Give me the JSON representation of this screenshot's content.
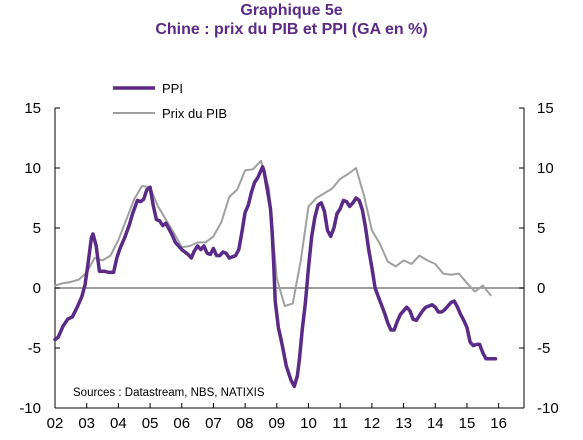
{
  "header": {
    "title": "Graphique 5e",
    "subtitle": "Chine : prix du PIB et PPI (GA en %)"
  },
  "source": "Sources : Datastream, NBS, NATIXIS",
  "colors": {
    "ppi": "#5b2a86",
    "pib": "#a0a0a0",
    "zero": "#7f7f7f",
    "axis": "#000000"
  },
  "chart_data": {
    "type": "line",
    "title": "Chine : prix du PIB et PPI (GA en %)",
    "xlim": [
      2002.0,
      2016.8
    ],
    "ylim": [
      -10,
      15
    ],
    "y_right_lim": [
      -10,
      15
    ],
    "x_ticks": [
      {
        "label": "02",
        "x": 2002.0
      },
      {
        "label": "03",
        "x": 2003.0
      },
      {
        "label": "04",
        "x": 2004.0
      },
      {
        "label": "05",
        "x": 2005.0
      },
      {
        "label": "06",
        "x": 2006.0
      },
      {
        "label": "07",
        "x": 2007.0
      },
      {
        "label": "08",
        "x": 2008.0
      },
      {
        "label": "09",
        "x": 2009.0
      },
      {
        "label": "10",
        "x": 2010.0
      },
      {
        "label": "11",
        "x": 2011.0
      },
      {
        "label": "12",
        "x": 2012.0
      },
      {
        "label": "13",
        "x": 2013.0
      },
      {
        "label": "14",
        "x": 2014.0
      },
      {
        "label": "15",
        "x": 2015.0
      },
      {
        "label": "16",
        "x": 2016.0
      }
    ],
    "y_ticks_left": [
      "15",
      "10",
      "5",
      "0",
      "-5",
      "-10"
    ],
    "y_ticks_right": [
      "15",
      "10",
      "5",
      "0",
      "-5",
      "-10"
    ],
    "y_tick_values": [
      15,
      10,
      5,
      0,
      -5,
      -10
    ],
    "grid": false,
    "legend_position": "top-left",
    "series": [
      {
        "name": "PPI",
        "color": "#5b2a86",
        "width": 3.5,
        "points": [
          [
            2002.0,
            -4.3
          ],
          [
            2002.1,
            -4.1
          ],
          [
            2002.25,
            -3.2
          ],
          [
            2002.4,
            -2.6
          ],
          [
            2002.55,
            -2.4
          ],
          [
            2002.7,
            -1.6
          ],
          [
            2002.85,
            -0.7
          ],
          [
            2002.95,
            0.3
          ],
          [
            2003.05,
            2.2
          ],
          [
            2003.15,
            4.2
          ],
          [
            2003.2,
            4.5
          ],
          [
            2003.3,
            3.5
          ],
          [
            2003.4,
            1.4
          ],
          [
            2003.55,
            1.4
          ],
          [
            2003.7,
            1.3
          ],
          [
            2003.85,
            1.3
          ],
          [
            2003.95,
            2.5
          ],
          [
            2004.05,
            3.3
          ],
          [
            2004.2,
            4.2
          ],
          [
            2004.35,
            5.3
          ],
          [
            2004.45,
            6.2
          ],
          [
            2004.6,
            7.3
          ],
          [
            2004.7,
            7.2
          ],
          [
            2004.8,
            7.4
          ],
          [
            2004.9,
            8.2
          ],
          [
            2005.0,
            8.4
          ],
          [
            2005.1,
            6.9
          ],
          [
            2005.2,
            5.7
          ],
          [
            2005.3,
            5.6
          ],
          [
            2005.4,
            5.2
          ],
          [
            2005.5,
            5.4
          ],
          [
            2005.6,
            4.9
          ],
          [
            2005.7,
            4.4
          ],
          [
            2005.8,
            3.8
          ],
          [
            2005.9,
            3.5
          ],
          [
            2006.0,
            3.2
          ],
          [
            2006.1,
            3.0
          ],
          [
            2006.2,
            2.8
          ],
          [
            2006.3,
            2.5
          ],
          [
            2006.4,
            3.1
          ],
          [
            2006.5,
            3.5
          ],
          [
            2006.6,
            3.2
          ],
          [
            2006.7,
            3.5
          ],
          [
            2006.8,
            2.9
          ],
          [
            2006.9,
            2.8
          ],
          [
            2007.0,
            3.3
          ],
          [
            2007.1,
            2.7
          ],
          [
            2007.2,
            2.7
          ],
          [
            2007.3,
            3.0
          ],
          [
            2007.4,
            2.9
          ],
          [
            2007.5,
            2.5
          ],
          [
            2007.6,
            2.6
          ],
          [
            2007.7,
            2.7
          ],
          [
            2007.8,
            3.2
          ],
          [
            2007.9,
            4.7
          ],
          [
            2008.0,
            6.3
          ],
          [
            2008.1,
            6.9
          ],
          [
            2008.2,
            8.0
          ],
          [
            2008.3,
            8.8
          ],
          [
            2008.4,
            9.2
          ],
          [
            2008.5,
            9.8
          ],
          [
            2008.55,
            10.1
          ],
          [
            2008.6,
            9.7
          ],
          [
            2008.7,
            8.2
          ],
          [
            2008.8,
            6.6
          ],
          [
            2008.85,
            4.7
          ],
          [
            2008.9,
            2.0
          ],
          [
            2008.95,
            -1.1
          ],
          [
            2009.05,
            -3.3
          ],
          [
            2009.15,
            -4.5
          ],
          [
            2009.3,
            -6.5
          ],
          [
            2009.45,
            -7.7
          ],
          [
            2009.55,
            -8.2
          ],
          [
            2009.65,
            -7.3
          ],
          [
            2009.72,
            -5.8
          ],
          [
            2009.8,
            -3.5
          ],
          [
            2009.9,
            -1.3
          ],
          [
            2010.0,
            1.7
          ],
          [
            2010.1,
            4.3
          ],
          [
            2010.2,
            5.9
          ],
          [
            2010.3,
            6.9
          ],
          [
            2010.4,
            7.1
          ],
          [
            2010.5,
            6.4
          ],
          [
            2010.6,
            4.8
          ],
          [
            2010.7,
            4.3
          ],
          [
            2010.8,
            5.0
          ],
          [
            2010.9,
            6.2
          ],
          [
            2011.0,
            6.6
          ],
          [
            2011.1,
            7.3
          ],
          [
            2011.2,
            7.2
          ],
          [
            2011.3,
            6.8
          ],
          [
            2011.4,
            7.1
          ],
          [
            2011.5,
            7.5
          ],
          [
            2011.6,
            7.3
          ],
          [
            2011.7,
            6.5
          ],
          [
            2011.8,
            5.0
          ],
          [
            2011.9,
            3.2
          ],
          [
            2012.0,
            1.7
          ],
          [
            2012.1,
            0.0
          ],
          [
            2012.2,
            -0.7
          ],
          [
            2012.3,
            -1.4
          ],
          [
            2012.4,
            -2.1
          ],
          [
            2012.5,
            -2.9
          ],
          [
            2012.6,
            -3.5
          ],
          [
            2012.7,
            -3.5
          ],
          [
            2012.8,
            -2.8
          ],
          [
            2012.9,
            -2.2
          ],
          [
            2013.0,
            -1.9
          ],
          [
            2013.1,
            -1.6
          ],
          [
            2013.2,
            -1.9
          ],
          [
            2013.3,
            -2.6
          ],
          [
            2013.4,
            -2.7
          ],
          [
            2013.5,
            -2.3
          ],
          [
            2013.6,
            -1.9
          ],
          [
            2013.7,
            -1.6
          ],
          [
            2013.8,
            -1.5
          ],
          [
            2013.9,
            -1.4
          ],
          [
            2014.0,
            -1.6
          ],
          [
            2014.1,
            -2.0
          ],
          [
            2014.2,
            -2.0
          ],
          [
            2014.3,
            -1.8
          ],
          [
            2014.4,
            -1.5
          ],
          [
            2014.5,
            -1.2
          ],
          [
            2014.6,
            -1.1
          ],
          [
            2014.7,
            -1.6
          ],
          [
            2014.8,
            -2.2
          ],
          [
            2014.9,
            -2.7
          ],
          [
            2015.0,
            -3.3
          ],
          [
            2015.1,
            -4.5
          ],
          [
            2015.2,
            -4.8
          ],
          [
            2015.3,
            -4.7
          ],
          [
            2015.4,
            -4.7
          ],
          [
            2015.5,
            -5.4
          ],
          [
            2015.6,
            -5.9
          ],
          [
            2015.7,
            -5.9
          ],
          [
            2015.8,
            -5.9
          ],
          [
            2015.9,
            -5.9
          ]
        ]
      },
      {
        "name": "Prix du PIB",
        "color": "#a0a0a0",
        "width": 2,
        "points": [
          [
            2002.0,
            0.2
          ],
          [
            2002.25,
            0.4
          ],
          [
            2002.5,
            0.5
          ],
          [
            2002.75,
            0.7
          ],
          [
            2003.0,
            1.3
          ],
          [
            2003.25,
            2.5
          ],
          [
            2003.5,
            2.3
          ],
          [
            2003.75,
            2.7
          ],
          [
            2004.0,
            4.0
          ],
          [
            2004.25,
            5.7
          ],
          [
            2004.5,
            7.4
          ],
          [
            2004.75,
            8.5
          ],
          [
            2005.0,
            8.4
          ],
          [
            2005.25,
            6.8
          ],
          [
            2005.5,
            5.7
          ],
          [
            2005.75,
            4.6
          ],
          [
            2006.0,
            3.4
          ],
          [
            2006.25,
            3.5
          ],
          [
            2006.5,
            3.8
          ],
          [
            2006.75,
            3.8
          ],
          [
            2007.0,
            4.3
          ],
          [
            2007.25,
            5.5
          ],
          [
            2007.5,
            7.6
          ],
          [
            2007.75,
            8.2
          ],
          [
            2008.0,
            9.8
          ],
          [
            2008.25,
            9.9
          ],
          [
            2008.5,
            10.6
          ],
          [
            2008.75,
            8.3
          ],
          [
            2009.0,
            0.8
          ],
          [
            2009.25,
            -1.5
          ],
          [
            2009.5,
            -1.3
          ],
          [
            2009.75,
            2.2
          ],
          [
            2010.0,
            6.8
          ],
          [
            2010.25,
            7.5
          ],
          [
            2010.5,
            7.9
          ],
          [
            2010.75,
            8.3
          ],
          [
            2011.0,
            9.1
          ],
          [
            2011.25,
            9.5
          ],
          [
            2011.5,
            10.0
          ],
          [
            2011.75,
            7.7
          ],
          [
            2012.0,
            4.8
          ],
          [
            2012.25,
            3.7
          ],
          [
            2012.5,
            2.2
          ],
          [
            2012.75,
            1.8
          ],
          [
            2013.0,
            2.3
          ],
          [
            2013.25,
            2.0
          ],
          [
            2013.5,
            2.7
          ],
          [
            2013.75,
            2.3
          ],
          [
            2014.0,
            2.0
          ],
          [
            2014.25,
            1.2
          ],
          [
            2014.5,
            1.1
          ],
          [
            2014.75,
            1.2
          ],
          [
            2015.0,
            0.4
          ],
          [
            2015.25,
            -0.3
          ],
          [
            2015.5,
            0.2
          ],
          [
            2015.75,
            -0.6
          ]
        ]
      }
    ]
  }
}
